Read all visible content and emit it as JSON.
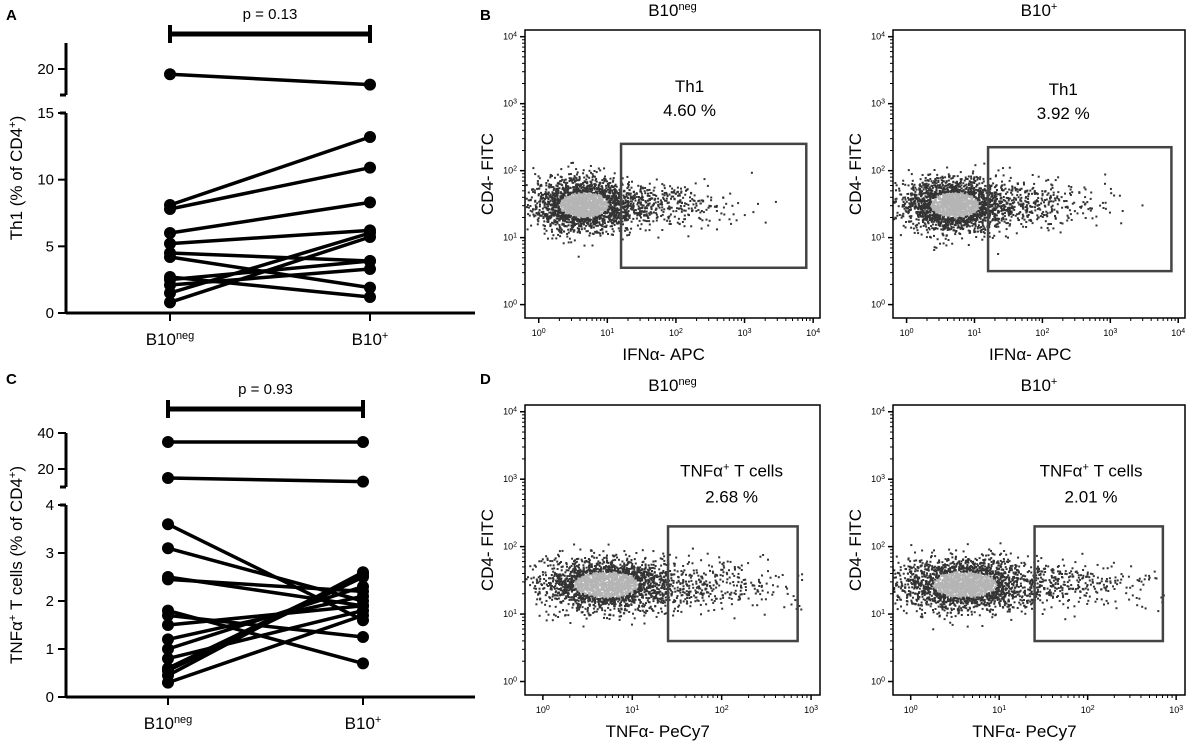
{
  "chart_data": [
    {
      "id": "A",
      "type": "line",
      "panel_label": "A",
      "categories": [
        "B10neg",
        "B10+"
      ],
      "category_labels": [
        {
          "base": "B10",
          "sup": "neg"
        },
        {
          "base": "B10",
          "sup": "+"
        }
      ],
      "ylabel_main": "Th1 (% of CD4",
      "ylabel_sup": "+",
      "ylabel_tail": ")",
      "yticks_lower": [
        "0",
        "5",
        "10",
        "15"
      ],
      "yticks_upper": [
        "20"
      ],
      "ylim_lower": [
        0,
        15
      ],
      "ylim_upper": [
        18,
        22
      ],
      "pvalue_text": "p = 0.13",
      "pairs": [
        [
          19.6,
          18.8
        ],
        [
          0.8,
          5.7
        ],
        [
          1.5,
          6.0
        ],
        [
          2.1,
          3.3
        ],
        [
          2.5,
          3.9
        ],
        [
          2.7,
          1.2
        ],
        [
          4.2,
          1.9
        ],
        [
          4.5,
          3.9
        ],
        [
          5.2,
          6.2
        ],
        [
          6.0,
          8.3
        ],
        [
          7.8,
          10.9
        ],
        [
          8.1,
          13.2
        ]
      ]
    },
    {
      "id": "C",
      "type": "line",
      "panel_label": "C",
      "categories": [
        "B10neg",
        "B10+"
      ],
      "category_labels": [
        {
          "base": "B10",
          "sup": "neg"
        },
        {
          "base": "B10",
          "sup": "+"
        }
      ],
      "ylabel_prefix": "TNFα",
      "ylabel_sup1": "+",
      "ylabel_middle": " T cells (% of CD4",
      "ylabel_sup2": "+",
      "ylabel_tail": ")",
      "yticks_lower": [
        "0",
        "1",
        "2",
        "3",
        "4"
      ],
      "yticks_upper": [
        "20",
        "40"
      ],
      "ylim_lower": [
        0,
        4
      ],
      "ylim_upper": [
        10,
        40
      ],
      "pvalue_text": "p = 0.93",
      "pairs": [
        [
          35,
          35
        ],
        [
          15,
          13
        ],
        [
          3.6,
          1.6
        ],
        [
          3.1,
          2.0
        ],
        [
          2.5,
          1.9
        ],
        [
          2.45,
          2.2
        ],
        [
          1.8,
          0.7
        ],
        [
          1.7,
          1.25
        ],
        [
          1.5,
          1.9
        ],
        [
          1.2,
          2.1
        ],
        [
          1.0,
          2.3
        ],
        [
          0.8,
          1.8
        ],
        [
          0.6,
          2.55
        ],
        [
          0.55,
          2.5
        ],
        [
          0.45,
          2.6
        ],
        [
          0.3,
          1.7
        ]
      ]
    },
    {
      "id": "B1",
      "type": "scatter",
      "panel_label": "B",
      "title_base": "B10",
      "title_sup": "neg",
      "ylabel": "CD4- FITC",
      "xlabel": "IFNα- APC",
      "xlim_log10": [
        -0.2,
        4.1
      ],
      "ylim_log10": [
        -0.2,
        4.1
      ],
      "gate_log10": {
        "x1": 1.2,
        "x2": 3.9,
        "y1": 0.55,
        "y2": 2.4
      },
      "gate_label": "Th1",
      "gate_percent": "4.60 %",
      "cluster_center_log10": [
        0.65,
        1.5
      ],
      "xtick_exps": [
        "0",
        "1",
        "2",
        "3",
        "4"
      ],
      "ytick_exps": [
        "0",
        "1",
        "2",
        "3",
        "4"
      ]
    },
    {
      "id": "B2",
      "type": "scatter",
      "panel_label": "",
      "title_base": "B10",
      "title_sup": "+",
      "ylabel": "CD4- FITC",
      "xlabel": "IFNα- APC",
      "xlim_log10": [
        -0.2,
        4.1
      ],
      "ylim_log10": [
        -0.2,
        4.1
      ],
      "gate_log10": {
        "x1": 1.2,
        "x2": 3.9,
        "y1": 0.5,
        "y2": 2.35
      },
      "gate_label": "Th1",
      "gate_percent": "3.92 %",
      "cluster_center_log10": [
        0.7,
        1.5
      ],
      "xtick_exps": [
        "0",
        "1",
        "2",
        "3",
        "4"
      ],
      "ytick_exps": [
        "0",
        "1",
        "2",
        "3",
        "4"
      ]
    },
    {
      "id": "D1",
      "type": "scatter",
      "panel_label": "D",
      "title_base": "B10",
      "title_sup": "neg",
      "ylabel": "CD4- FITC",
      "xlabel": "TNFα- PeCy7",
      "xlim_log10": [
        -0.2,
        3.1
      ],
      "ylim_log10": [
        -0.2,
        4.1
      ],
      "gate_log10": {
        "x1": 1.4,
        "x2": 2.85,
        "y1": 0.6,
        "y2": 2.3
      },
      "gate_label": "TNFα",
      "gate_label_sup": "+",
      "gate_label_tail": " T cells",
      "gate_percent": "2.68 %",
      "cluster_center_log10": [
        0.7,
        1.45
      ],
      "xtick_exps": [
        "0",
        "1",
        "2",
        "3"
      ],
      "ytick_exps": [
        "0",
        "1",
        "2",
        "3",
        "4"
      ]
    },
    {
      "id": "D2",
      "type": "scatter",
      "panel_label": "",
      "title_base": "B10",
      "title_sup": "+",
      "ylabel": "CD4- FITC",
      "xlabel": "TNFα- PeCy7",
      "xlim_log10": [
        -0.2,
        3.1
      ],
      "ylim_log10": [
        -0.2,
        4.1
      ],
      "gate_log10": {
        "x1": 1.4,
        "x2": 2.85,
        "y1": 0.6,
        "y2": 2.3
      },
      "gate_label": "TNFα",
      "gate_label_sup": "+",
      "gate_label_tail": " T cells",
      "gate_percent": "2.01 %",
      "cluster_center_log10": [
        0.6,
        1.45
      ],
      "xtick_exps": [
        "0",
        "1",
        "2",
        "3"
      ],
      "ytick_exps": [
        "0",
        "1",
        "2",
        "3",
        "4"
      ]
    }
  ],
  "colors": {
    "line": "#000000",
    "dot_dark": "#333333",
    "dot_light": "#b5b5b5",
    "gate": "#444444",
    "axis": "#000000"
  }
}
